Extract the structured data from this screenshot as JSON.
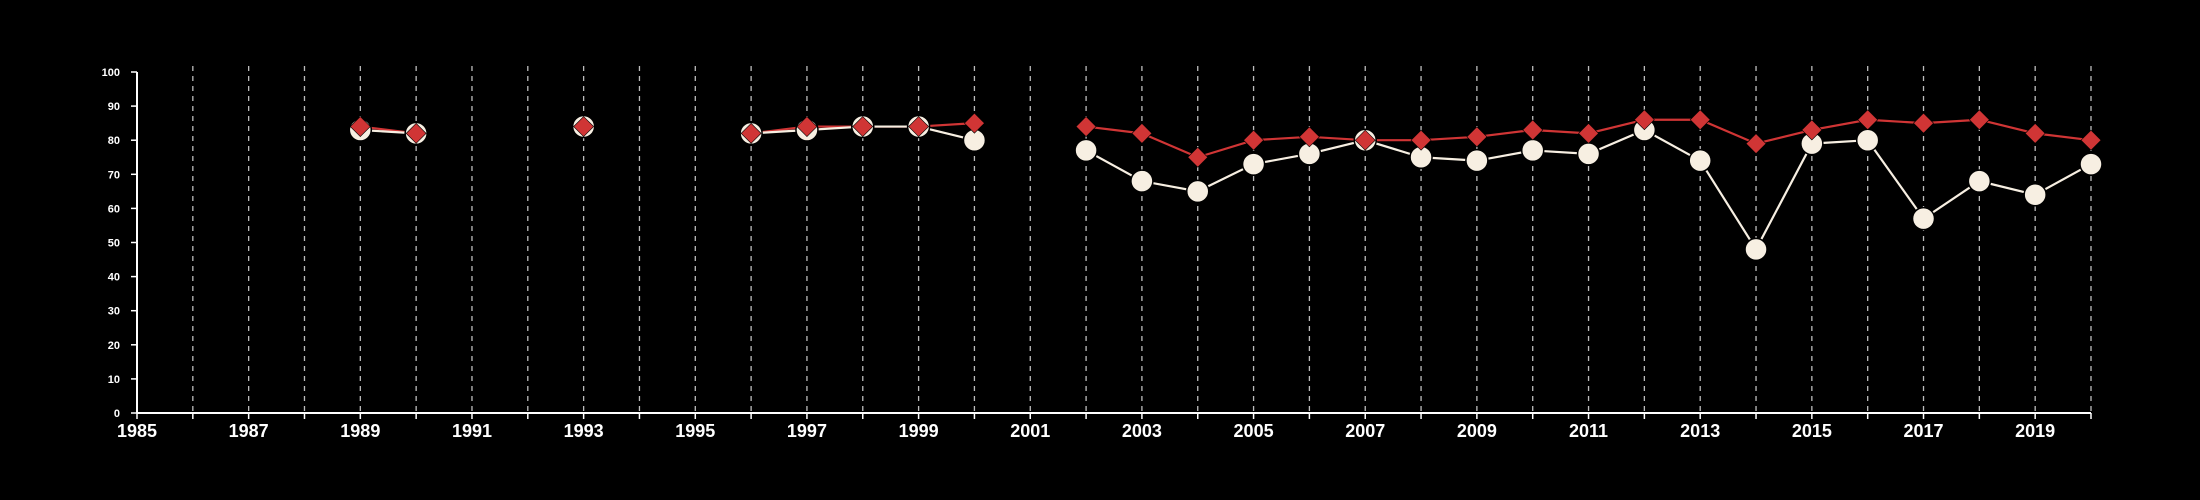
{
  "chart_data": {
    "type": "line",
    "title": "",
    "xlabel": "",
    "ylabel": "",
    "xlim": [
      1985,
      2020
    ],
    "ylim": [
      0,
      100
    ],
    "x_ticks_labeled": [
      "1985",
      "1987",
      "1989",
      "1991",
      "1993",
      "1995",
      "1997",
      "1999",
      "2001",
      "2003",
      "2005",
      "2007",
      "2009",
      "2011",
      "2013",
      "2015",
      "2017",
      "2019"
    ],
    "y_ticks": [
      "0",
      "10",
      "20",
      "30",
      "40",
      "50",
      "60",
      "70",
      "80",
      "90",
      "100"
    ],
    "vertical_grid": "dashed, every year",
    "horizontal_grid": false,
    "legend": "none",
    "background": "#000000",
    "series": [
      {
        "marker": "diamond",
        "color": "#d03535",
        "points": [
          {
            "x": 1989,
            "y": 84
          },
          {
            "x": 1990,
            "y": 82
          },
          {
            "x": 1993,
            "y": 84
          },
          {
            "x": 1996,
            "y": 82
          },
          {
            "x": 1997,
            "y": 84
          },
          {
            "x": 1998,
            "y": 84
          },
          {
            "x": 1999,
            "y": 84
          },
          {
            "x": 2000,
            "y": 85
          },
          {
            "x": 2002,
            "y": 84
          },
          {
            "x": 2003,
            "y": 82
          },
          {
            "x": 2004,
            "y": 75
          },
          {
            "x": 2005,
            "y": 80
          },
          {
            "x": 2006,
            "y": 81
          },
          {
            "x": 2007,
            "y": 80
          },
          {
            "x": 2008,
            "y": 80
          },
          {
            "x": 2009,
            "y": 81
          },
          {
            "x": 2010,
            "y": 83
          },
          {
            "x": 2011,
            "y": 82
          },
          {
            "x": 2012,
            "y": 86
          },
          {
            "x": 2013,
            "y": 86
          },
          {
            "x": 2014,
            "y": 79
          },
          {
            "x": 2015,
            "y": 83
          },
          {
            "x": 2016,
            "y": 86
          },
          {
            "x": 2017,
            "y": 85
          },
          {
            "x": 2018,
            "y": 86
          },
          {
            "x": 2019,
            "y": 82
          },
          {
            "x": 2020,
            "y": 80
          }
        ]
      },
      {
        "marker": "circle",
        "color": "#f7efe2",
        "points": [
          {
            "x": 1989,
            "y": 83
          },
          {
            "x": 1990,
            "y": 82
          },
          {
            "x": 1993,
            "y": 84
          },
          {
            "x": 1996,
            "y": 82
          },
          {
            "x": 1997,
            "y": 83
          },
          {
            "x": 1998,
            "y": 84
          },
          {
            "x": 1999,
            "y": 84
          },
          {
            "x": 2000,
            "y": 80
          },
          {
            "x": 2002,
            "y": 77
          },
          {
            "x": 2003,
            "y": 68
          },
          {
            "x": 2004,
            "y": 65
          },
          {
            "x": 2005,
            "y": 73
          },
          {
            "x": 2006,
            "y": 76
          },
          {
            "x": 2007,
            "y": 80
          },
          {
            "x": 2008,
            "y": 75
          },
          {
            "x": 2009,
            "y": 74
          },
          {
            "x": 2010,
            "y": 77
          },
          {
            "x": 2011,
            "y": 76
          },
          {
            "x": 2012,
            "y": 83
          },
          {
            "x": 2013,
            "y": 74
          },
          {
            "x": 2014,
            "y": 48
          },
          {
            "x": 2015,
            "y": 79
          },
          {
            "x": 2016,
            "y": 80
          },
          {
            "x": 2017,
            "y": 57
          },
          {
            "x": 2018,
            "y": 68
          },
          {
            "x": 2019,
            "y": 64
          },
          {
            "x": 2020,
            "y": 73
          }
        ]
      }
    ]
  }
}
